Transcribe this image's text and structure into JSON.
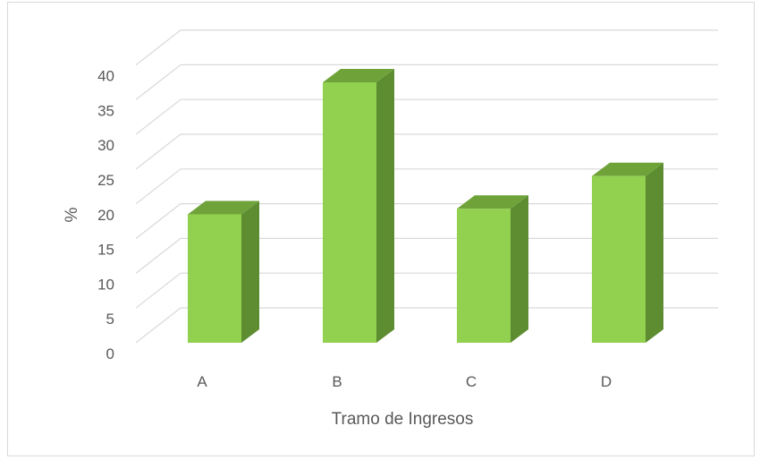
{
  "chart_data": {
    "type": "bar",
    "style": "3d-column",
    "categories": [
      "A",
      "B",
      "C",
      "D"
    ],
    "values": [
      18.5,
      37.5,
      19.3,
      24.0
    ],
    "xlabel": "Tramo de Ingresos",
    "ylabel": "%",
    "ylim": [
      0,
      40
    ],
    "yticks": [
      0,
      5,
      10,
      15,
      20,
      25,
      30,
      35,
      40
    ],
    "grid": true,
    "legend": "none",
    "colors": {
      "bar_front": "#92d050",
      "bar_side": "#5e8c31",
      "bar_top": "#6fa33a",
      "grid": "#d9d9d9",
      "text": "#595959"
    }
  }
}
